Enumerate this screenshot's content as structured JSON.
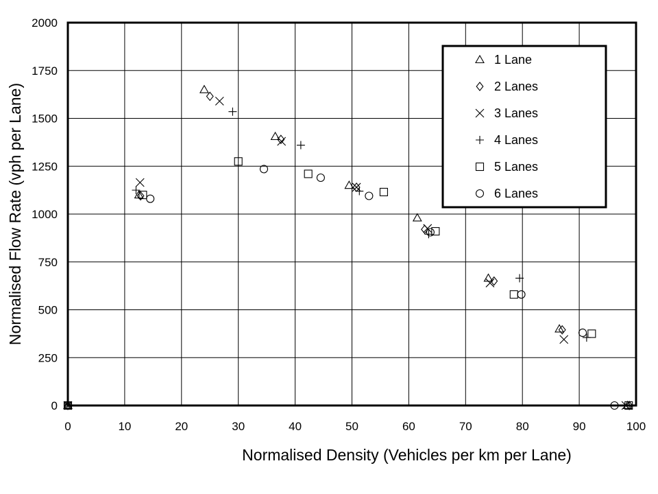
{
  "chart_data": {
    "type": "scatter",
    "title": "",
    "xlabel": "Normalised Density (Vehicles  per  km  per  Lane)",
    "ylabel": "Normalised Flow Rate (vph  per  Lane)",
    "xlim": [
      0,
      100
    ],
    "ylim": [
      0,
      2000
    ],
    "x_ticks": [
      0,
      10,
      20,
      30,
      40,
      50,
      60,
      70,
      80,
      90,
      100
    ],
    "y_ticks": [
      0,
      250,
      500,
      750,
      1000,
      1250,
      1500,
      1750,
      2000
    ],
    "grid": true,
    "legend_position": "top-right",
    "series": [
      {
        "name": "1 Lane",
        "marker": "triangle",
        "points": [
          [
            0,
            0
          ],
          [
            12.5,
            1100
          ],
          [
            24,
            1650
          ],
          [
            36.5,
            1405
          ],
          [
            49.5,
            1150
          ],
          [
            61.5,
            980
          ],
          [
            74,
            665
          ],
          [
            86.5,
            400
          ],
          [
            98.5,
            0
          ]
        ]
      },
      {
        "name": "2 Lanes",
        "marker": "diamond",
        "points": [
          [
            0,
            0
          ],
          [
            12.8,
            1095
          ],
          [
            25,
            1615
          ],
          [
            37.5,
            1390
          ],
          [
            50.8,
            1140
          ],
          [
            62.8,
            920
          ],
          [
            75,
            650
          ],
          [
            87,
            395
          ],
          [
            98.8,
            0
          ]
        ]
      },
      {
        "name": "3 Lanes",
        "marker": "x",
        "points": [
          [
            0,
            0
          ],
          [
            12.7,
            1165
          ],
          [
            26.7,
            1590
          ],
          [
            37.6,
            1380
          ],
          [
            50.8,
            1140
          ],
          [
            63.3,
            925
          ],
          [
            74.3,
            640
          ],
          [
            87.3,
            345
          ],
          [
            98.2,
            0
          ]
        ]
      },
      {
        "name": "4 Lanes",
        "marker": "plus",
        "points": [
          [
            0,
            0
          ],
          [
            12,
            1125
          ],
          [
            29,
            1535
          ],
          [
            41,
            1360
          ],
          [
            51.3,
            1120
          ],
          [
            63.5,
            895
          ],
          [
            79.5,
            665
          ],
          [
            91.3,
            355
          ],
          [
            98.8,
            0
          ]
        ]
      },
      {
        "name": "5 Lanes",
        "marker": "square",
        "points": [
          [
            0,
            0
          ],
          [
            13.2,
            1100
          ],
          [
            30,
            1275
          ],
          [
            42.3,
            1210
          ],
          [
            55.6,
            1115
          ],
          [
            64.7,
            910
          ],
          [
            78.5,
            580
          ],
          [
            92.2,
            375
          ],
          [
            98.7,
            0
          ]
        ]
      },
      {
        "name": "6 Lanes",
        "marker": "circle",
        "points": [
          [
            0,
            0
          ],
          [
            14.5,
            1080
          ],
          [
            34.5,
            1235
          ],
          [
            44.5,
            1190
          ],
          [
            53,
            1095
          ],
          [
            63.8,
            905
          ],
          [
            79.8,
            580
          ],
          [
            90.6,
            380
          ],
          [
            96.2,
            0
          ]
        ]
      }
    ]
  }
}
